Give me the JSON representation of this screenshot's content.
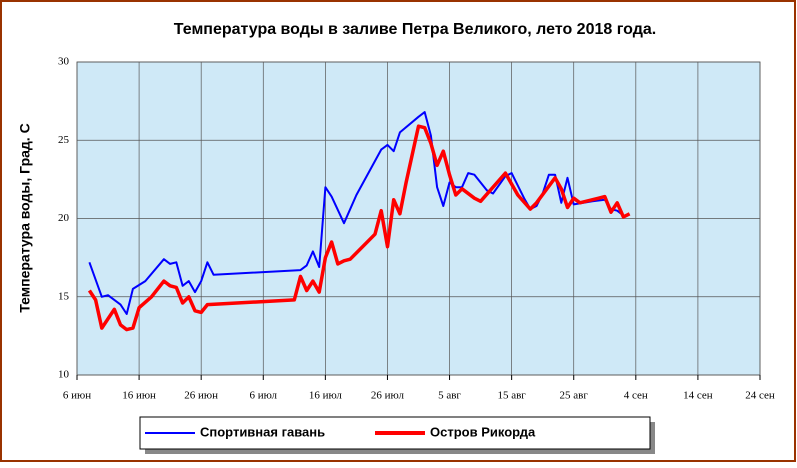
{
  "chart_data": {
    "type": "line",
    "title": "Температура воды в заливе Петра Великого,  лето 2018 года.",
    "y_label": "Температура воды, Град. С",
    "xlim": [
      "2018-06-06",
      "2018-09-24"
    ],
    "xticks": [
      {
        "value": "2018-06-06",
        "label": "6 июн"
      },
      {
        "value": "2018-06-16",
        "label": "16 июн"
      },
      {
        "value": "2018-06-26",
        "label": "26 июн"
      },
      {
        "value": "2018-07-06",
        "label": "6 июл"
      },
      {
        "value": "2018-07-16",
        "label": "16 июл"
      },
      {
        "value": "2018-07-26",
        "label": "26 июл"
      },
      {
        "value": "2018-08-05",
        "label": "5 авг"
      },
      {
        "value": "2018-08-15",
        "label": "15 авг"
      },
      {
        "value": "2018-08-25",
        "label": "25 авг"
      },
      {
        "value": "2018-09-04",
        "label": "4 сен"
      },
      {
        "value": "2018-09-14",
        "label": "14 сен"
      },
      {
        "value": "2018-09-24",
        "label": "24 сен"
      }
    ],
    "ylim": [
      10,
      30
    ],
    "yticks": [
      10,
      15,
      20,
      25,
      30
    ],
    "grid": true,
    "series": [
      {
        "name": "Спортивная гавань",
        "color": "#0000ff",
        "x": [
          "2018-06-08",
          "2018-06-10",
          "2018-06-11",
          "2018-06-13",
          "2018-06-14",
          "2018-06-15",
          "2018-06-17",
          "2018-06-20",
          "2018-06-21",
          "2018-06-22",
          "2018-06-23",
          "2018-06-24",
          "2018-06-25",
          "2018-06-26",
          "2018-06-27",
          "2018-06-28",
          "2018-07-12",
          "2018-07-13",
          "2018-07-14",
          "2018-07-15",
          "2018-07-16",
          "2018-07-17",
          "2018-07-19",
          "2018-07-21",
          "2018-07-25",
          "2018-07-26",
          "2018-07-27",
          "2018-07-28",
          "2018-07-31",
          "2018-08-01",
          "2018-08-02",
          "2018-08-03",
          "2018-08-04",
          "2018-08-05",
          "2018-08-06",
          "2018-08-07",
          "2018-08-08",
          "2018-08-09",
          "2018-08-11",
          "2018-08-12",
          "2018-08-14",
          "2018-08-15",
          "2018-08-17",
          "2018-08-18",
          "2018-08-19",
          "2018-08-20",
          "2018-08-21",
          "2018-08-22",
          "2018-08-23",
          "2018-08-24",
          "2018-08-25",
          "2018-08-28",
          "2018-08-30",
          "2018-08-31",
          "2018-09-01",
          "2018-09-02"
        ],
        "values": [
          17.2,
          15.0,
          15.1,
          14.5,
          13.9,
          15.5,
          16.0,
          17.4,
          17.1,
          17.2,
          15.7,
          16.0,
          15.3,
          16.0,
          17.2,
          16.4,
          16.7,
          17.0,
          17.9,
          16.9,
          22.0,
          21.4,
          19.7,
          21.5,
          24.4,
          24.7,
          24.3,
          25.5,
          26.5,
          26.8,
          25.3,
          22.0,
          20.8,
          22.3,
          22.0,
          22.0,
          22.9,
          22.8,
          21.8,
          21.6,
          22.7,
          22.9,
          21.3,
          20.6,
          20.8,
          21.6,
          22.8,
          22.8,
          21.0,
          22.6,
          20.9,
          21.1,
          21.2,
          20.6,
          20.5,
          20.2
        ]
      },
      {
        "name": "Остров Рикорда",
        "color": "#ff0000",
        "x": [
          "2018-06-08",
          "2018-06-09",
          "2018-06-10",
          "2018-06-12",
          "2018-06-13",
          "2018-06-14",
          "2018-06-15",
          "2018-06-16",
          "2018-06-18",
          "2018-06-20",
          "2018-06-21",
          "2018-06-22",
          "2018-06-23",
          "2018-06-24",
          "2018-06-25",
          "2018-06-26",
          "2018-06-27",
          "2018-07-11",
          "2018-07-12",
          "2018-07-13",
          "2018-07-14",
          "2018-07-15",
          "2018-07-16",
          "2018-07-17",
          "2018-07-18",
          "2018-07-19",
          "2018-07-20",
          "2018-07-24",
          "2018-07-25",
          "2018-07-26",
          "2018-07-27",
          "2018-07-28",
          "2018-07-29",
          "2018-07-31",
          "2018-08-01",
          "2018-08-02",
          "2018-08-03",
          "2018-08-04",
          "2018-08-05",
          "2018-08-06",
          "2018-08-07",
          "2018-08-09",
          "2018-08-10",
          "2018-08-14",
          "2018-08-16",
          "2018-08-18",
          "2018-08-19",
          "2018-08-22",
          "2018-08-23",
          "2018-08-24",
          "2018-08-25",
          "2018-08-26",
          "2018-08-29",
          "2018-08-30",
          "2018-08-31",
          "2018-09-01",
          "2018-09-02",
          "2018-09-03"
        ],
        "values": [
          15.4,
          14.8,
          13.0,
          14.2,
          13.2,
          12.9,
          13.0,
          14.3,
          15.0,
          16.0,
          15.7,
          15.6,
          14.6,
          15.0,
          14.1,
          14.0,
          14.5,
          14.8,
          16.3,
          15.4,
          16.0,
          15.3,
          17.5,
          18.5,
          17.1,
          17.3,
          17.4,
          19.0,
          20.5,
          18.2,
          21.2,
          20.3,
          22.3,
          25.9,
          25.8,
          24.8,
          23.4,
          24.3,
          22.8,
          21.5,
          21.9,
          21.3,
          21.1,
          22.9,
          21.5,
          20.6,
          21.0,
          22.6,
          21.9,
          20.7,
          21.3,
          21.0,
          21.3,
          21.4,
          20.4,
          21.0,
          20.1,
          20.3
        ]
      }
    ]
  }
}
